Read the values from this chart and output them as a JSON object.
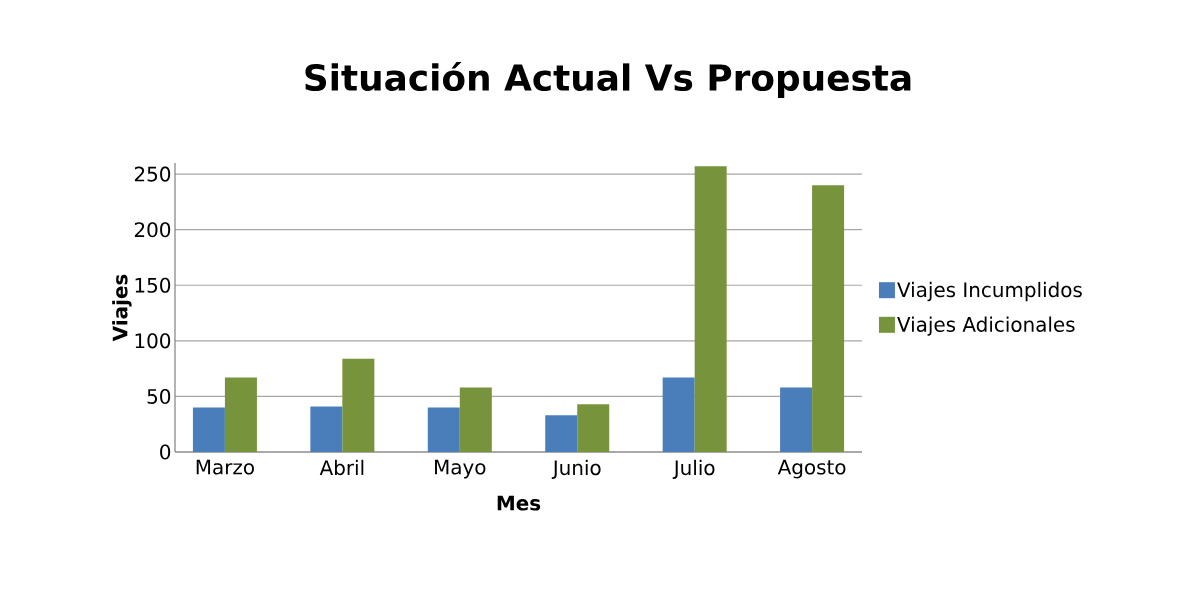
{
  "chart_data": {
    "type": "bar",
    "title": "Situación Actual Vs Propuesta",
    "xlabel": "Mes",
    "ylabel": "Viajes",
    "categories": [
      "Marzo",
      "Abril",
      "Mayo",
      "Junio",
      "Julio",
      "Agosto"
    ],
    "series": [
      {
        "name": "Viajes Incumplidos",
        "color": "#4a7ebb",
        "values": [
          40,
          41,
          40,
          33,
          67,
          58
        ]
      },
      {
        "name": "Viajes Adicionales",
        "color": "#77933c",
        "values": [
          67,
          84,
          58,
          43,
          257,
          240
        ]
      }
    ],
    "ylim": [
      0,
      260
    ],
    "yticks": [
      0,
      50,
      100,
      150,
      200,
      250
    ],
    "grid": "y",
    "legend": "right"
  }
}
